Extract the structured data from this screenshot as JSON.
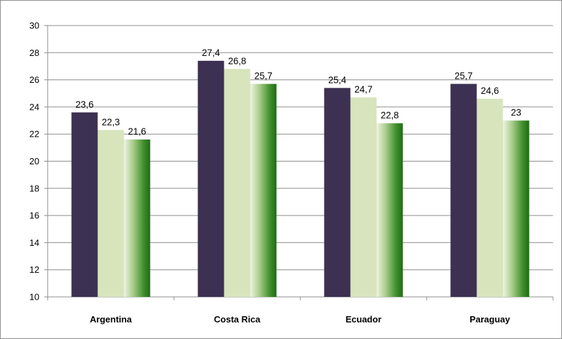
{
  "chart_data": {
    "type": "bar",
    "categories": [
      "Argentina",
      "Costa Rica",
      "Ecuador",
      "Paraguay"
    ],
    "series": [
      {
        "values": [
          23.6,
          27.4,
          25.4,
          25.7
        ],
        "labels": [
          "23,6",
          "27,4",
          "25,4",
          "25,7"
        ],
        "color": "#3c3152"
      },
      {
        "values": [
          22.3,
          26.8,
          24.7,
          24.6
        ],
        "labels": [
          "22,3",
          "26,8",
          "24,7",
          "24,6"
        ],
        "color": "#d8e4bc"
      },
      {
        "values": [
          21.6,
          25.7,
          22.8,
          23.0
        ],
        "labels": [
          "21,6",
          "25,7",
          "22,8",
          "23"
        ],
        "color": "#2e7d1e"
      }
    ],
    "ylim": [
      10,
      30
    ],
    "yticks": [
      10,
      12,
      14,
      16,
      18,
      20,
      22,
      24,
      26,
      28,
      30
    ],
    "grid": true,
    "legend": false
  }
}
